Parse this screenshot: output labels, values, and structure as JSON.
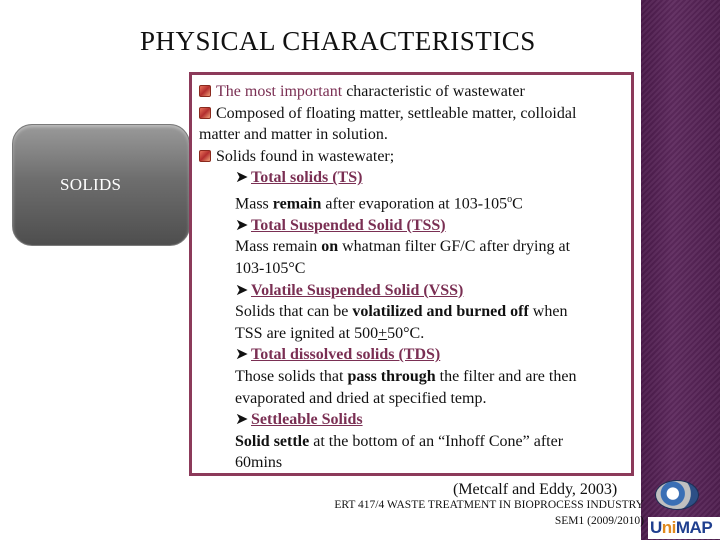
{
  "slide": {
    "title": "PHYSICAL CHARACTERISTICS",
    "tab_label": "SOLIDS",
    "bullets": {
      "b1_pre": "The most important ",
      "b1_post": "characteristic of wastewater",
      "b2_l1": "Composed of floating matter, settleable matter, colloidal",
      "b2_l2": "matter and matter in solution.",
      "b3": "Solids found in wastewater;"
    },
    "items": [
      {
        "heading": "Total solids (TS)",
        "lines": [
          [
            "Mass ",
            "remain",
            " after evaporation at 103-105",
            "o",
            "C"
          ]
        ]
      },
      {
        "heading": "Total Suspended Solid (TSS)",
        "line1": [
          "Mass remain ",
          "on",
          " whatman filter GF/C after drying at"
        ],
        "line2": "103-105°C"
      },
      {
        "heading": "Volatile Suspended Solid (VSS)",
        "line1": [
          "Solids that can be ",
          "volatilized and burned off",
          " when"
        ],
        "line2": [
          "TSS are ignited at 500",
          "+",
          "50°C."
        ]
      },
      {
        "heading": "Total dissolved solids (TDS)",
        "line1": [
          "Those solids that ",
          "pass through",
          " the filter and are then"
        ],
        "line2": "evaporated and dried at specified temp."
      },
      {
        "heading": "Settleable Solids",
        "line1": [
          "Solid settle",
          " at the bottom of an “Inhoff Cone” after"
        ],
        "line2": "60mins"
      }
    ],
    "reference": "(Metcalf and Eddy, 2003)",
    "footer": {
      "line1": "ERT 417/4 WASTE TREATMENT IN BIOPROCESS INDUSTRY",
      "line2": "SEM1 (2009/2010)"
    },
    "logo": {
      "u": "U",
      "ni": "ni",
      "map": "MAP"
    },
    "colors": {
      "accent": "#8c3a5a",
      "band": "#4f1f4f",
      "tab": "#6e6e6e"
    }
  }
}
